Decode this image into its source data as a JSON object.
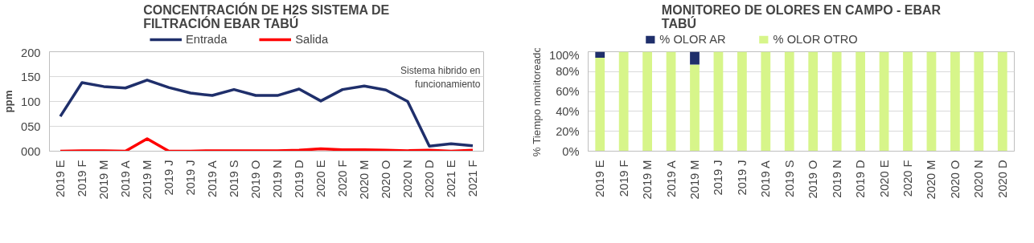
{
  "chart_data": [
    {
      "type": "line",
      "title": "CONCENTRACIÓN DE H2S SISTEMA DE\nFILTRACIÓN EBAR TABÚ",
      "ylabel": "ppm",
      "categories": [
        "2019 E",
        "2019 F",
        "2019 M",
        "2019 A",
        "2019 M",
        "2019 J",
        "2019 J",
        "2019 A",
        "2019 S",
        "2019 O",
        "2019 N",
        "2019 D",
        "2020 E",
        "2020 F",
        "2020 M",
        "2020 O",
        "2020 N",
        "2020 D",
        "2021 E",
        "2021 F"
      ],
      "series": [
        {
          "name": "Entrada",
          "color": "#1f2f6b",
          "values": [
            70,
            138,
            130,
            127,
            143,
            128,
            117,
            112,
            124,
            112,
            112,
            125,
            101,
            124,
            131,
            123,
            100,
            10,
            15,
            11
          ]
        },
        {
          "name": "Salida",
          "color": "#ff0000",
          "values": [
            0,
            1,
            1,
            0,
            25,
            0,
            0,
            1,
            1,
            1,
            1,
            2,
            5,
            3,
            3,
            2,
            1,
            2,
            0,
            2
          ]
        }
      ],
      "ylim": [
        0,
        200
      ],
      "yticks": [
        {
          "value": 0,
          "label": "000"
        },
        {
          "value": 50,
          "label": "050"
        },
        100,
        150,
        200
      ],
      "grid": "y",
      "legend": "top",
      "line_style": "solid",
      "annotations": [
        "Sistema hibrido en\nfuncionamiento"
      ]
    },
    {
      "type": "bar",
      "stacked": true,
      "title": "MONITOREO DE OLORES EN CAMPO - EBAR\nTABÚ",
      "ylabel": "% Tiempo monitoreado",
      "categories": [
        "2019 E",
        "2019 F",
        "2019 M",
        "2019 A",
        "2019 M",
        "2019 J",
        "2019 J",
        "2019 A",
        "2019 S",
        "2019 O",
        "2019 N",
        "2019 D",
        "2020 E",
        "2020 F",
        "2020 M",
        "2020 O",
        "2020 N",
        "2020 D"
      ],
      "series": [
        {
          "name": "% OLOR OTRO",
          "color": "#d7f58a",
          "values": [
            94,
            100,
            100,
            100,
            87,
            100,
            100,
            100,
            100,
            100,
            100,
            100,
            100,
            100,
            100,
            100,
            100,
            100
          ]
        },
        {
          "name": "% OLOR AR",
          "color": "#1f2f6b",
          "values": [
            6,
            0,
            0,
            0,
            13,
            0,
            0,
            0,
            0,
            0,
            0,
            0,
            0,
            0,
            0,
            0,
            0,
            0
          ]
        }
      ],
      "ylim": [
        0,
        100
      ],
      "yticks": [
        {
          "value": 0,
          "label": "0%"
        },
        {
          "value": 20,
          "label": "20%"
        },
        {
          "value": 40,
          "label": "40%"
        },
        {
          "value": 60,
          "label": "60%"
        },
        {
          "value": 80,
          "label": "80%"
        },
        {
          "value": 100,
          "label": "100%"
        }
      ],
      "grid": "y",
      "legend": "top"
    }
  ]
}
